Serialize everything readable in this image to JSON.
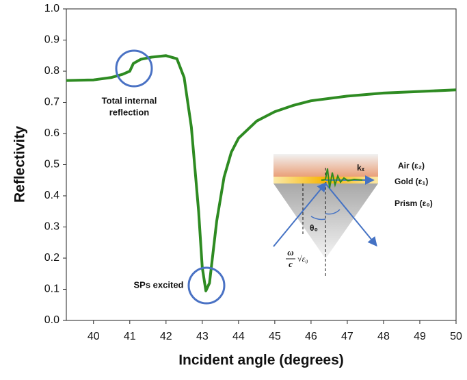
{
  "chart_data": {
    "type": "line",
    "x_label": "Incident angle (degrees)",
    "y_label": "Reflectivity",
    "x": [
      39.25,
      40,
      40.5,
      40.8,
      41.0,
      41.1,
      41.3,
      41.6,
      42.0,
      42.3,
      42.5,
      42.7,
      42.9,
      43.0,
      43.1,
      43.2,
      43.4,
      43.6,
      43.8,
      44.0,
      44.5,
      45,
      45.5,
      46,
      47,
      48,
      49,
      50
    ],
    "values": [
      0.77,
      0.772,
      0.78,
      0.79,
      0.8,
      0.825,
      0.838,
      0.845,
      0.85,
      0.84,
      0.78,
      0.62,
      0.35,
      0.17,
      0.095,
      0.12,
      0.32,
      0.46,
      0.54,
      0.585,
      0.64,
      0.67,
      0.69,
      0.705,
      0.72,
      0.73,
      0.735,
      0.74
    ],
    "color": "#2e8b22",
    "xlim": [
      39.25,
      50
    ],
    "ylim": [
      0,
      1
    ],
    "xticks": [
      40,
      41,
      42,
      43,
      44,
      45,
      46,
      47,
      48,
      49,
      50
    ],
    "yticks": [
      {
        "value": 0,
        "label": "0.0"
      },
      0.1,
      0.2,
      0.3,
      0.4,
      0.5,
      0.6,
      0.7,
      0.8,
      0.9,
      {
        "value": 1,
        "label": "1.0"
      }
    ],
    "annotations": [
      [
        "Total internal",
        "reflection"
      ],
      [
        "SPs excited"
      ]
    ]
  },
  "inset": {
    "air": "Air (ε₂)",
    "gold": "Gold (ε₁)",
    "prism": "Prism (ε₀)",
    "k": "kₓ",
    "theta": "θ₀",
    "omega": "ω",
    "c": "c",
    "root": "√ε₀"
  }
}
